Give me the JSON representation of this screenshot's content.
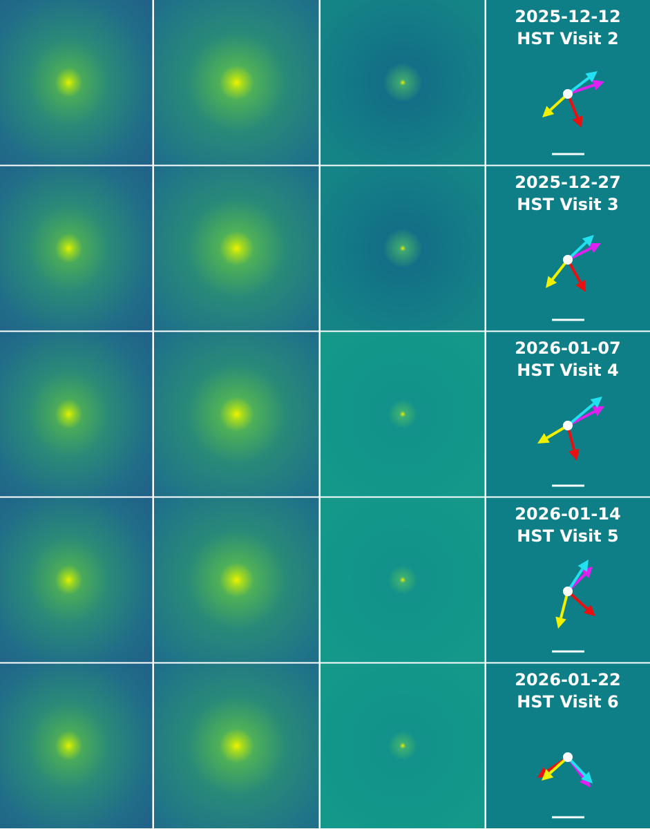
{
  "rows": [
    {
      "date": "2025-12-12",
      "label": "HST Visit 2"
    },
    {
      "date": "2025-12-27",
      "label": "HST Visit 3"
    },
    {
      "date": "2026-01-07",
      "label": "HST Visit 4"
    },
    {
      "date": "2026-01-14",
      "label": "HST Visit 5"
    },
    {
      "date": "2026-01-22",
      "label": "HST Visit 6"
    }
  ]
}
